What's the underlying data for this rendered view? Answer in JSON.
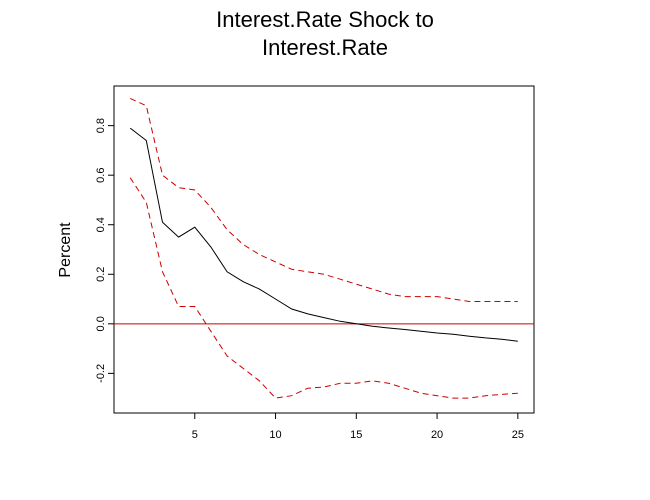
{
  "chart_data": {
    "type": "line",
    "title_line1": "Interest.Rate Shock to",
    "title_line2": "Interest.Rate",
    "xlabel": "",
    "ylabel": "Percent",
    "xlim": [
      0,
      26
    ],
    "ylim": [
      -0.36,
      0.96
    ],
    "x_ticks": [
      5,
      10,
      15,
      20,
      25
    ],
    "y_ticks": [
      -0.2,
      0.0,
      0.2,
      0.4,
      0.6,
      0.8
    ],
    "y_tick_labels": [
      "-0.2",
      "0.0",
      "0.2",
      "0.4",
      "0.6",
      "0.8"
    ],
    "grid": false,
    "x": [
      1,
      2,
      3,
      4,
      5,
      6,
      7,
      8,
      9,
      10,
      11,
      12,
      13,
      14,
      15,
      16,
      17,
      18,
      19,
      20,
      21,
      22,
      23,
      24,
      25
    ],
    "series": [
      {
        "role": "irf",
        "color": "#000000",
        "dash": "solid",
        "values": [
          0.79,
          0.74,
          0.41,
          0.35,
          0.39,
          0.31,
          0.21,
          0.17,
          0.14,
          0.1,
          0.06,
          0.04,
          0.025,
          0.01,
          0.0,
          -0.01,
          -0.017,
          -0.023,
          -0.03,
          -0.037,
          -0.042,
          -0.05,
          -0.057,
          -0.062,
          -0.07
        ]
      },
      {
        "role": "upper",
        "color": "#cc0000",
        "dash": "dashed",
        "values": [
          0.91,
          0.88,
          0.6,
          0.55,
          0.54,
          0.47,
          0.38,
          0.32,
          0.28,
          0.25,
          0.22,
          0.21,
          0.2,
          0.18,
          0.16,
          0.14,
          0.12,
          0.11,
          0.11,
          0.11,
          0.1,
          0.09,
          0.09,
          0.09,
          0.09
        ]
      },
      {
        "role": "lower",
        "color": "#cc0000",
        "dash": "dashed",
        "values": [
          0.59,
          0.49,
          0.21,
          0.07,
          0.07,
          -0.03,
          -0.13,
          -0.18,
          -0.23,
          -0.3,
          -0.29,
          -0.26,
          -0.255,
          -0.24,
          -0.24,
          -0.23,
          -0.24,
          -0.26,
          -0.28,
          -0.29,
          -0.3,
          -0.3,
          -0.29,
          -0.285,
          -0.28
        ]
      }
    ],
    "reference_line": {
      "y": 0,
      "color": "#cc0000"
    }
  }
}
